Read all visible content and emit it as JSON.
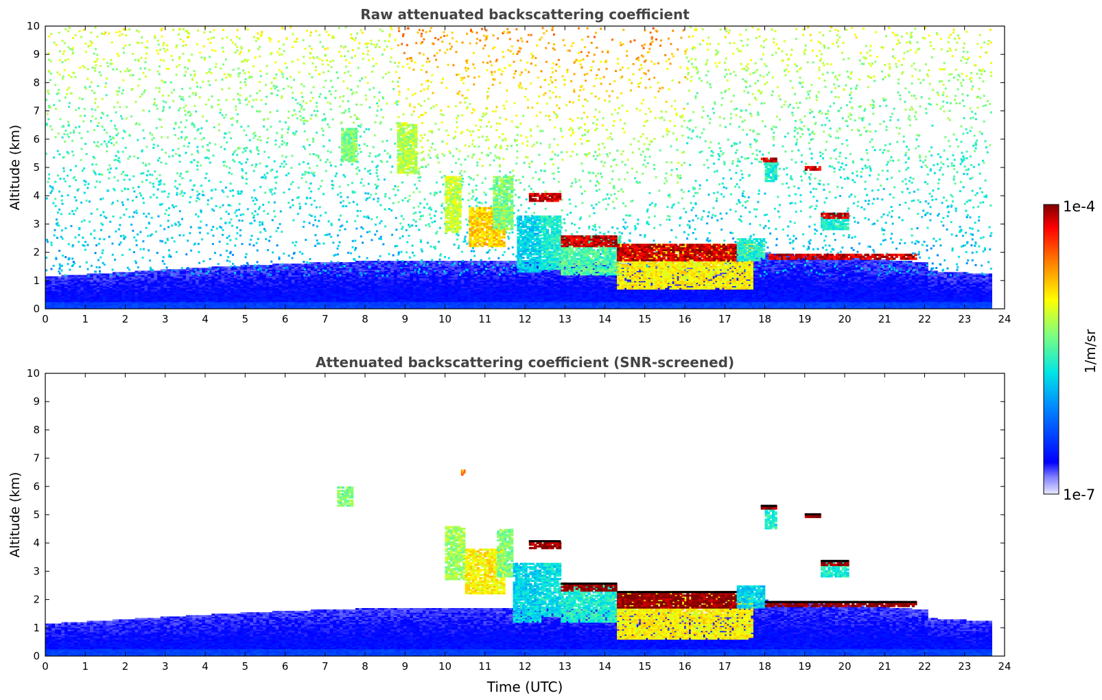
{
  "chart_data": [
    {
      "type": "heatmap",
      "title": "Raw attenuated backscattering coefficient",
      "xlabel": "",
      "ylabel": "Altitude (km)",
      "xlim": [
        0,
        24
      ],
      "ylim": [
        0,
        10
      ],
      "x_ticks": [
        "0",
        "1",
        "2",
        "3",
        "4",
        "5",
        "6",
        "7",
        "8",
        "9",
        "10",
        "11",
        "12",
        "13",
        "14",
        "15",
        "16",
        "17",
        "18",
        "19",
        "20",
        "21",
        "22",
        "23",
        "24"
      ],
      "y_ticks": [
        "0",
        "1",
        "2",
        "3",
        "4",
        "5",
        "6",
        "7",
        "8",
        "9",
        "10"
      ],
      "data_end_time": 23.65,
      "noise": true,
      "features": [
        {
          "x": [
            7.4,
            7.8
          ],
          "y": [
            5.2,
            6.4
          ],
          "level": 0.55
        },
        {
          "x": [
            8.8,
            9.3
          ],
          "y": [
            4.8,
            6.6
          ],
          "level": 0.6
        },
        {
          "x": [
            10.0,
            10.4
          ],
          "y": [
            2.7,
            4.7
          ],
          "level": 0.62
        },
        {
          "x": [
            10.6,
            11.5
          ],
          "y": [
            2.2,
            3.6
          ],
          "level": 0.72
        },
        {
          "x": [
            11.2,
            11.7
          ],
          "y": [
            2.8,
            4.7
          ],
          "level": 0.55
        },
        {
          "x": [
            11.8,
            12.4
          ],
          "y": [
            1.3,
            3.3
          ],
          "level": 0.4
        },
        {
          "x": [
            12.4,
            12.9
          ],
          "y": [
            1.4,
            3.3
          ],
          "level": 0.45
        },
        {
          "x": [
            12.1,
            12.9
          ],
          "y": [
            3.8,
            4.1
          ],
          "level": 0.95
        },
        {
          "x": [
            12.9,
            14.4
          ],
          "y": [
            1.2,
            2.6
          ],
          "level": 0.5
        },
        {
          "x": [
            12.9,
            14.3
          ],
          "y": [
            2.2,
            2.6
          ],
          "level": 0.95
        },
        {
          "x": [
            14.3,
            17.7
          ],
          "y": [
            0.7,
            2.3
          ],
          "level": 0.68
        },
        {
          "x": [
            14.3,
            17.3
          ],
          "y": [
            1.7,
            2.3
          ],
          "level": 0.95
        },
        {
          "x": [
            17.3,
            18.0
          ],
          "y": [
            1.7,
            2.5
          ],
          "level": 0.45
        },
        {
          "x": [
            18.0,
            18.3
          ],
          "y": [
            4.5,
            5.3
          ],
          "level": 0.45
        },
        {
          "x": [
            17.9,
            18.3
          ],
          "y": [
            5.2,
            5.35
          ],
          "level": 0.95
        },
        {
          "x": [
            19.0,
            19.4
          ],
          "y": [
            4.9,
            5.05
          ],
          "level": 0.95
        },
        {
          "x": [
            19.4,
            20.1
          ],
          "y": [
            2.8,
            3.4
          ],
          "level": 0.45
        },
        {
          "x": [
            19.4,
            20.1
          ],
          "y": [
            3.2,
            3.4
          ],
          "level": 0.95
        },
        {
          "x": [
            18.1,
            21.8
          ],
          "y": [
            1.75,
            1.95
          ],
          "level": 0.95
        }
      ]
    },
    {
      "type": "heatmap",
      "title": "Attenuated backscattering coefficient (SNR-screened)",
      "xlabel": "Time (UTC)",
      "ylabel": "Altitude (km)",
      "xlim": [
        0,
        24
      ],
      "ylim": [
        0,
        10
      ],
      "x_ticks": [
        "0",
        "1",
        "2",
        "3",
        "4",
        "5",
        "6",
        "7",
        "8",
        "9",
        "10",
        "11",
        "12",
        "13",
        "14",
        "15",
        "16",
        "17",
        "18",
        "19",
        "20",
        "21",
        "22",
        "23",
        "24"
      ],
      "y_ticks": [
        "0",
        "1",
        "2",
        "3",
        "4",
        "5",
        "6",
        "7",
        "8",
        "9",
        "10"
      ],
      "data_end_time": 23.65,
      "noise": false,
      "features": [
        {
          "x": [
            7.3,
            7.7
          ],
          "y": [
            5.3,
            6.0
          ],
          "level": 0.55
        },
        {
          "x": [
            10.4,
            10.5
          ],
          "y": [
            6.4,
            6.6
          ],
          "level": 0.8
        },
        {
          "x": [
            10.0,
            10.5
          ],
          "y": [
            2.7,
            4.6
          ],
          "level": 0.58
        },
        {
          "x": [
            10.5,
            11.5
          ],
          "y": [
            2.2,
            3.8
          ],
          "level": 0.68
        },
        {
          "x": [
            11.3,
            11.7
          ],
          "y": [
            2.8,
            4.5
          ],
          "level": 0.55
        },
        {
          "x": [
            11.7,
            12.4
          ],
          "y": [
            1.2,
            3.3
          ],
          "level": 0.4
        },
        {
          "x": [
            12.4,
            12.9
          ],
          "y": [
            1.4,
            3.3
          ],
          "level": 0.42
        },
        {
          "x": [
            12.1,
            12.9
          ],
          "y": [
            3.8,
            4.1
          ],
          "level": 1.0
        },
        {
          "x": [
            12.9,
            14.3
          ],
          "y": [
            1.2,
            2.6
          ],
          "level": 0.45
        },
        {
          "x": [
            12.9,
            14.3
          ],
          "y": [
            2.3,
            2.6
          ],
          "level": 1.0
        },
        {
          "x": [
            14.3,
            17.7
          ],
          "y": [
            0.6,
            2.3
          ],
          "level": 0.68
        },
        {
          "x": [
            14.3,
            17.3
          ],
          "y": [
            1.7,
            2.3
          ],
          "level": 1.0
        },
        {
          "x": [
            17.3,
            18.0
          ],
          "y": [
            1.7,
            2.5
          ],
          "level": 0.4
        },
        {
          "x": [
            18.0,
            18.3
          ],
          "y": [
            4.5,
            5.3
          ],
          "level": 0.45
        },
        {
          "x": [
            17.9,
            18.3
          ],
          "y": [
            5.2,
            5.35
          ],
          "level": 1.0
        },
        {
          "x": [
            19.0,
            19.4
          ],
          "y": [
            4.9,
            5.05
          ],
          "level": 1.0
        },
        {
          "x": [
            19.4,
            20.1
          ],
          "y": [
            2.8,
            3.4
          ],
          "level": 0.45
        },
        {
          "x": [
            19.4,
            20.1
          ],
          "y": [
            3.2,
            3.4
          ],
          "level": 1.0
        },
        {
          "x": [
            18.0,
            21.8
          ],
          "y": [
            1.75,
            1.95
          ],
          "level": 1.0
        }
      ]
    }
  ],
  "colorbar": {
    "label": "1/m/sr",
    "max_label": "1e-4",
    "min_label": "1e-7",
    "colormap": "jet"
  },
  "colors": {
    "axes": "#000000",
    "title_text": "#444444",
    "background": "#ffffff"
  }
}
